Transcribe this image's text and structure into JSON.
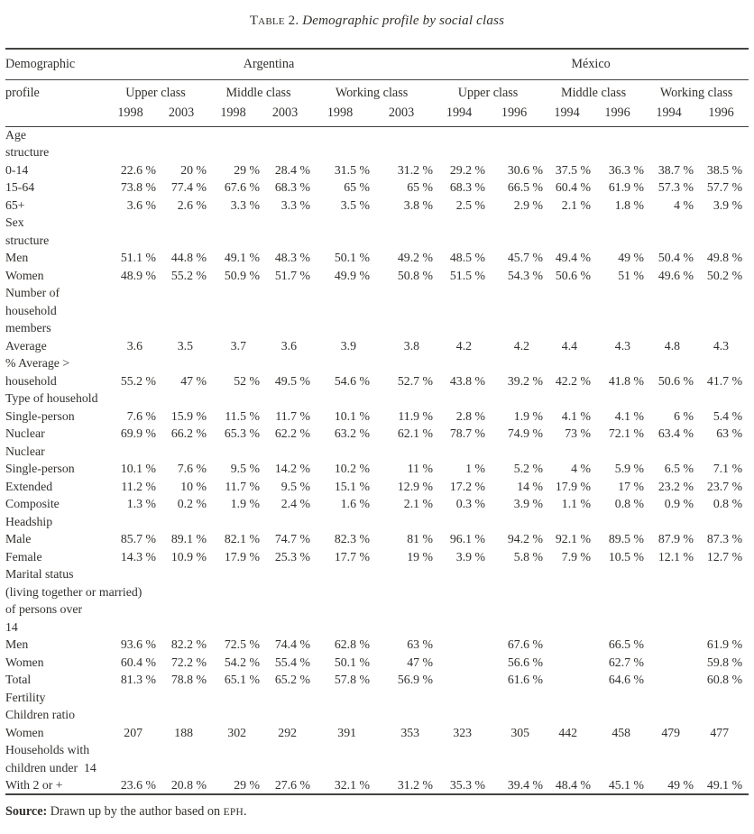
{
  "title": {
    "prefix": "Table 2.",
    "text": " Demographic profile by social class"
  },
  "table": {
    "header": {
      "left_line1": "Demographic",
      "left_line2": "profile",
      "groups": [
        "Argentina",
        "México"
      ],
      "classes": [
        "Upper class",
        "Middle class",
        "Working class",
        "Upper class",
        "Middle class",
        "Working class"
      ],
      "years": [
        "1998",
        "2003",
        "1998",
        "2003",
        "1998",
        "2003",
        "1994",
        "1996",
        "1994",
        "1996",
        "1994",
        "1996"
      ]
    },
    "rows": [
      {
        "label": "Age",
        "values": []
      },
      {
        "label": "structure",
        "values": []
      },
      {
        "label": "0-14",
        "values": [
          "22.6 %",
          "20 %",
          "29 %",
          "28.4 %",
          "31.5 %",
          "31.2 %",
          "29.2 %",
          "30.6 %",
          "37.5 %",
          "36.3 %",
          "38.7 %",
          "38.5 %"
        ]
      },
      {
        "label": "15-64",
        "values": [
          "73.8 %",
          "77.4 %",
          "67.6 %",
          "68.3 %",
          "65 %",
          "65 %",
          "68.3 %",
          "66.5 %",
          "60.4 %",
          "61.9 %",
          "57.3 %",
          "57.7 %"
        ]
      },
      {
        "label": "65+",
        "values": [
          "3.6 %",
          "2.6 %",
          "3.3 %",
          "3.3 %",
          "3.5 %",
          "3.8 %",
          "2.5 %",
          "2.9 %",
          "2.1 %",
          "1.8 %",
          "4 %",
          "3.9 %"
        ]
      },
      {
        "label": "Sex",
        "values": []
      },
      {
        "label": "structure",
        "values": []
      },
      {
        "label": "Men",
        "values": [
          "51.1 %",
          "44.8 %",
          "49.1 %",
          "48.3 %",
          "50.1 %",
          "49.2 %",
          "48.5 %",
          "45.7 %",
          "49.4 %",
          "49 %",
          "50.4 %",
          "49.8 %"
        ]
      },
      {
        "label": "Women",
        "values": [
          "48.9 %",
          "55.2 %",
          "50.9 %",
          "51.7 %",
          "49.9 %",
          "50.8 %",
          "51.5 %",
          "54.3 %",
          "50.6 %",
          "51 %",
          "49.6 %",
          "50.2 %"
        ]
      },
      {
        "label": "Number of",
        "values": []
      },
      {
        "label": "household",
        "values": []
      },
      {
        "label": "members",
        "values": []
      },
      {
        "label": "Average",
        "values": [
          "3.6",
          "3.5",
          "3.7",
          "3.6",
          "3.9",
          "3.8",
          "4.2",
          "4.2",
          "4.4",
          "4.3",
          "4.8",
          "4.3"
        ]
      },
      {
        "label": "% Average >",
        "values": []
      },
      {
        "label": "household",
        "values": [
          "55.2 %",
          "47 %",
          "52 %",
          "49.5 %",
          "54.6 %",
          "52.7 %",
          "43.8 %",
          "39.2 %",
          "42.2 %",
          "41.8 %",
          "50.6 %",
          "41.7 %"
        ]
      },
      {
        "label": "Type of household",
        "values": []
      },
      {
        "label": "Single-person",
        "values": [
          "7.6 %",
          "15.9 %",
          "11.5 %",
          "11.7 %",
          "10.1 %",
          "11.9 %",
          "2.8 %",
          "1.9 %",
          "4.1 %",
          "4.1 %",
          "6 %",
          "5.4 %"
        ]
      },
      {
        "label": "Nuclear",
        "values": [
          "69.9 %",
          "66.2 %",
          "65.3 %",
          "62.2 %",
          "63.2 %",
          "62.1 %",
          "78.7 %",
          "74.9 %",
          "73 %",
          "72.1 %",
          "63.4 %",
          "63 %"
        ]
      },
      {
        "label": "Nuclear",
        "values": []
      },
      {
        "label": "Single-person",
        "values": [
          "10.1 %",
          "7.6 %",
          "9.5 %",
          "14.2 %",
          "10.2 %",
          "11 %",
          "1 %",
          "5.2 %",
          "4 %",
          "5.9 %",
          "6.5 %",
          "7.1 %"
        ]
      },
      {
        "label": "Extended",
        "values": [
          "11.2 %",
          "10 %",
          "11.7 %",
          "9.5 %",
          "15.1 %",
          "12.9 %",
          "17.2 %",
          "14 %",
          "17.9 %",
          "17 %",
          "23.2 %",
          "23.7 %"
        ]
      },
      {
        "label": "Composite",
        "values": [
          "1.3 %",
          "0.2 %",
          "1.9 %",
          "2.4 %",
          "1.6 %",
          "2.1 %",
          "0.3 %",
          "3.9 %",
          "1.1 %",
          "0.8 %",
          "0.9 %",
          "0.8 %"
        ]
      },
      {
        "label": "Headship",
        "values": []
      },
      {
        "label": "Male",
        "values": [
          "85.7 %",
          "89.1 %",
          "82.1 %",
          "74.7 %",
          "82.3 %",
          "81 %",
          "96.1 %",
          "94.2 %",
          "92.1 %",
          "89.5 %",
          "87.9 %",
          "87.3 %"
        ]
      },
      {
        "label": "Female",
        "values": [
          "14.3 %",
          "10.9 %",
          "17.9 %",
          "25.3 %",
          "17.7 %",
          "19 %",
          "3.9 %",
          "5.8 %",
          "7.9 %",
          "10.5 %",
          "12.1 %",
          "12.7 %"
        ]
      },
      {
        "label": "Marital status",
        "values": []
      },
      {
        "label": "(living together or married)",
        "values": []
      },
      {
        "label": "of persons over",
        "values": []
      },
      {
        "label": "14",
        "values": []
      },
      {
        "label": "Men",
        "values": [
          "93.6 %",
          "82.2 %",
          "72.5 %",
          "74.4 %",
          "62.8 %",
          "63 %",
          "",
          "67.6 %",
          "",
          "66.5 %",
          "",
          "61.9 %"
        ]
      },
      {
        "label": "Women",
        "values": [
          "60.4 %",
          "72.2 %",
          "54.2 %",
          "55.4 %",
          "50.1 %",
          "47 %",
          "",
          "56.6 %",
          "",
          "62.7 %",
          "",
          "59.8 %"
        ]
      },
      {
        "label": "Total",
        "values": [
          "81.3 %",
          "78.8 %",
          "65.1 %",
          "65.2 %",
          "57.8 %",
          "56.9 %",
          "",
          "61.6 %",
          "",
          "64.6 %",
          "",
          "60.8 %"
        ]
      },
      {
        "label": "Fertility",
        "values": []
      },
      {
        "label": "Children ratio",
        "values": []
      },
      {
        "label": "Women",
        "values": [
          "207",
          "188",
          "302",
          "292",
          "391",
          "353",
          "323",
          "305",
          "442",
          "458",
          "479",
          "477"
        ]
      },
      {
        "label": "Households with",
        "values": []
      },
      {
        "label": "children under  14",
        "values": []
      },
      {
        "label": "With 2 or +",
        "values": [
          "23.6 %",
          "20.8 %",
          "29 %",
          "27.6 %",
          "32.1 %",
          "31.2 %",
          "35.3 %",
          "39.4 %",
          "48.4 %",
          "45.1 %",
          "49 %",
          "49.1 %"
        ]
      }
    ]
  },
  "source": {
    "label": "Source:",
    "text": " Drawn up by the author based on ",
    "smallcaps": "EPH",
    "suffix": "."
  },
  "colors": {
    "text": "#32302d",
    "rule": "#454340",
    "background": "#ffffff"
  }
}
